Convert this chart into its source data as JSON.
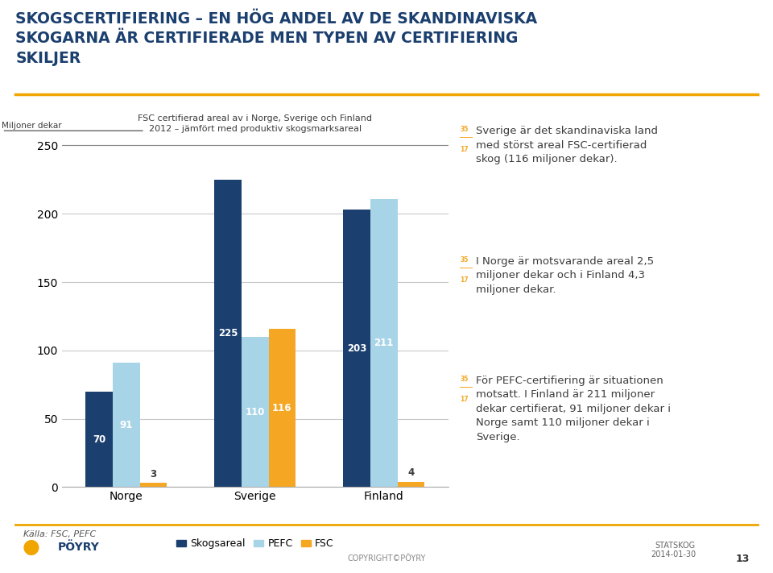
{
  "title_line1": "SKOGSCERTIFIERING – EN HÖG ANDEL AV DE SKANDINAVISKA",
  "title_line2": "SKOGARNA ÄR CERTIFIERADE MEN TYPEN AV CERTIFIERING",
  "title_line3": "SKILJER",
  "chart_title": "FSC certifierad areal av i Norge, Sverige och Finland\n2012 – jämfört med produktiv skogsmarksareal",
  "ylabel": "Miljoner dekar",
  "categories": [
    "Norge",
    "Sverige",
    "Finland"
  ],
  "skogsareal": [
    70,
    225,
    203
  ],
  "pefc": [
    91,
    110,
    211
  ],
  "fsc": [
    3,
    116,
    4
  ],
  "color_skogsareal": "#1b3f6e",
  "color_pefc": "#a8d4e8",
  "color_fsc": "#f5a623",
  "ylim": [
    0,
    260
  ],
  "yticks": [
    0,
    50,
    100,
    150,
    200,
    250
  ],
  "legend_labels": [
    "Skogsareal",
    "PEFC",
    "FSC"
  ],
  "source_text": "Källa: FSC, PEFC",
  "bullet_fraction_color": "#f5a623",
  "bullet_text_color": "#3c3c3c",
  "bullet_texts": [
    "Sverige är det skandinaviska land\nmed störst areal FSC-certifierad\nskog (116 miljoner dekar).",
    "I Norge är motsvarande areal 2,5\nmiljoner dekar och i Finland 4,3\nmiljoner dekar.",
    "För PEFC-certifiering är situationen\nmotsatt. I Finland är 211 miljoner\ndekar certifierat, 91 miljoner dekar i\nNorge samt 110 miljoner dekar i\nSverige."
  ],
  "background_color": "#ffffff",
  "title_color": "#1b3f6e",
  "footer_center": "COPYRIGHT©PÖYRY",
  "footer_right": "STATSKOG\n2014-01-30",
  "page_num": "13",
  "gold_color": "#f0a500",
  "grid_color": "#c8c8c8",
  "spine_color": "#aaaaaa"
}
